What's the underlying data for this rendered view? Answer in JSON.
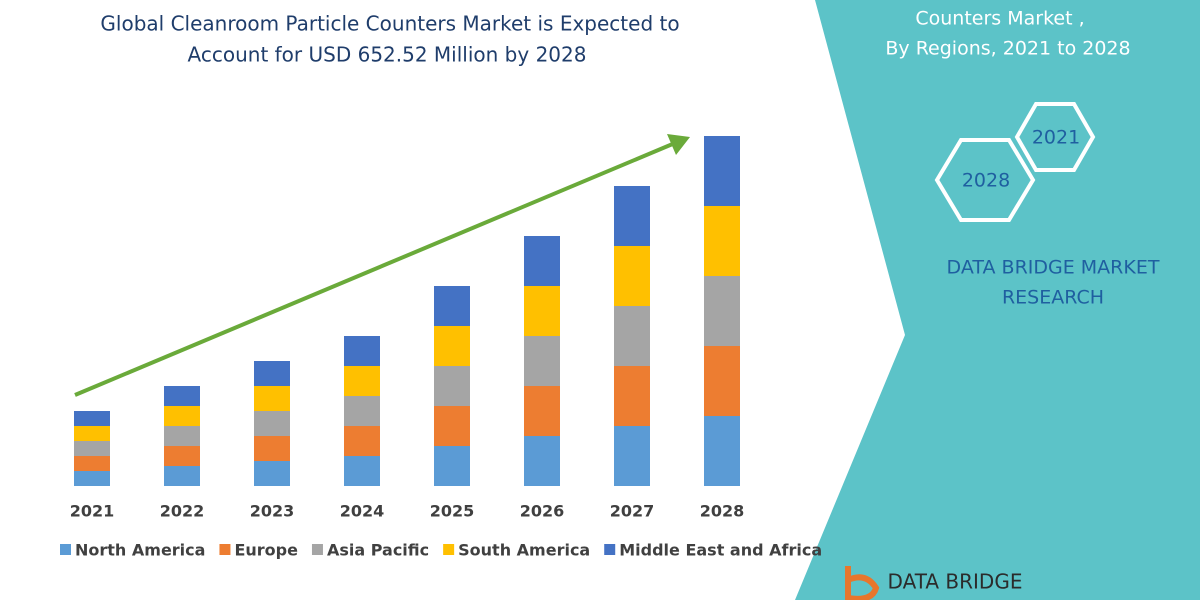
{
  "chart_data": {
    "type": "stacked-bar",
    "title": [
      "Global Cleanroom Particle Counters Market is Expected to",
      "Account for USD 652.52 Million by 2028"
    ],
    "categories": [
      "2021",
      "2022",
      "2023",
      "2024",
      "2025",
      "2026",
      "2027",
      "2028"
    ],
    "series": [
      {
        "name": "North America",
        "color": "#5b9bd5",
        "values": [
          15,
          20,
          25,
          30,
          40,
          50,
          60,
          70
        ]
      },
      {
        "name": "Europe",
        "color": "#ed7d31",
        "values": [
          15,
          20,
          25,
          30,
          40,
          50,
          60,
          70
        ]
      },
      {
        "name": "Asia Pacific",
        "color": "#a5a5a5",
        "values": [
          15,
          20,
          25,
          30,
          40,
          50,
          60,
          70
        ]
      },
      {
        "name": "South America",
        "color": "#ffc000",
        "values": [
          15,
          20,
          25,
          30,
          40,
          50,
          60,
          70
        ]
      },
      {
        "name": "Middle East and Africa",
        "color": "#4472c4",
        "values": [
          15,
          20,
          25,
          30,
          40,
          50,
          60,
          70
        ]
      }
    ],
    "ylim": [
      0,
      400
    ],
    "legend": "bottom"
  },
  "panel": {
    "heading": [
      "Counters Market ,",
      "By Regions,  2021 to 2028"
    ],
    "hex_labels": [
      "2021",
      "2028"
    ],
    "brand": [
      "DATA BRIDGE MARKET",
      "RESEARCH"
    ],
    "logo": "DATA BRIDGE"
  }
}
